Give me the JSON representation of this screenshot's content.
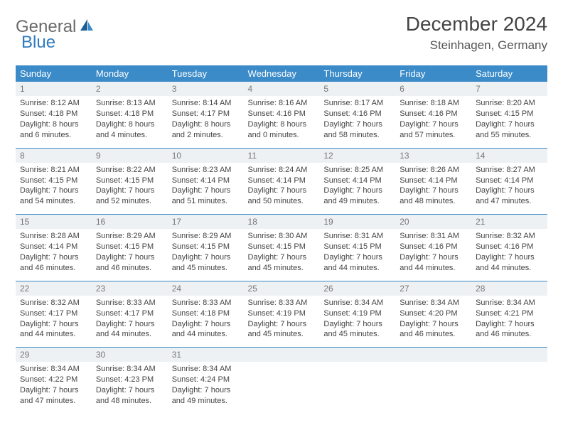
{
  "logo": {
    "word1": "General",
    "word2": "Blue"
  },
  "title": "December 2024",
  "location": "Steinhagen, Germany",
  "header_bg": "#3b8bc8",
  "daynum_bg": "#eef1f3",
  "week_border": "#3b8bc8",
  "day_headers": [
    "Sunday",
    "Monday",
    "Tuesday",
    "Wednesday",
    "Thursday",
    "Friday",
    "Saturday"
  ],
  "weeks": [
    [
      {
        "n": "1",
        "sr": "8:12 AM",
        "ss": "4:18 PM",
        "dl": "8 hours and 6 minutes."
      },
      {
        "n": "2",
        "sr": "8:13 AM",
        "ss": "4:18 PM",
        "dl": "8 hours and 4 minutes."
      },
      {
        "n": "3",
        "sr": "8:14 AM",
        "ss": "4:17 PM",
        "dl": "8 hours and 2 minutes."
      },
      {
        "n": "4",
        "sr": "8:16 AM",
        "ss": "4:16 PM",
        "dl": "8 hours and 0 minutes."
      },
      {
        "n": "5",
        "sr": "8:17 AM",
        "ss": "4:16 PM",
        "dl": "7 hours and 58 minutes."
      },
      {
        "n": "6",
        "sr": "8:18 AM",
        "ss": "4:16 PM",
        "dl": "7 hours and 57 minutes."
      },
      {
        "n": "7",
        "sr": "8:20 AM",
        "ss": "4:15 PM",
        "dl": "7 hours and 55 minutes."
      }
    ],
    [
      {
        "n": "8",
        "sr": "8:21 AM",
        "ss": "4:15 PM",
        "dl": "7 hours and 54 minutes."
      },
      {
        "n": "9",
        "sr": "8:22 AM",
        "ss": "4:15 PM",
        "dl": "7 hours and 52 minutes."
      },
      {
        "n": "10",
        "sr": "8:23 AM",
        "ss": "4:14 PM",
        "dl": "7 hours and 51 minutes."
      },
      {
        "n": "11",
        "sr": "8:24 AM",
        "ss": "4:14 PM",
        "dl": "7 hours and 50 minutes."
      },
      {
        "n": "12",
        "sr": "8:25 AM",
        "ss": "4:14 PM",
        "dl": "7 hours and 49 minutes."
      },
      {
        "n": "13",
        "sr": "8:26 AM",
        "ss": "4:14 PM",
        "dl": "7 hours and 48 minutes."
      },
      {
        "n": "14",
        "sr": "8:27 AM",
        "ss": "4:14 PM",
        "dl": "7 hours and 47 minutes."
      }
    ],
    [
      {
        "n": "15",
        "sr": "8:28 AM",
        "ss": "4:14 PM",
        "dl": "7 hours and 46 minutes."
      },
      {
        "n": "16",
        "sr": "8:29 AM",
        "ss": "4:15 PM",
        "dl": "7 hours and 46 minutes."
      },
      {
        "n": "17",
        "sr": "8:29 AM",
        "ss": "4:15 PM",
        "dl": "7 hours and 45 minutes."
      },
      {
        "n": "18",
        "sr": "8:30 AM",
        "ss": "4:15 PM",
        "dl": "7 hours and 45 minutes."
      },
      {
        "n": "19",
        "sr": "8:31 AM",
        "ss": "4:15 PM",
        "dl": "7 hours and 44 minutes."
      },
      {
        "n": "20",
        "sr": "8:31 AM",
        "ss": "4:16 PM",
        "dl": "7 hours and 44 minutes."
      },
      {
        "n": "21",
        "sr": "8:32 AM",
        "ss": "4:16 PM",
        "dl": "7 hours and 44 minutes."
      }
    ],
    [
      {
        "n": "22",
        "sr": "8:32 AM",
        "ss": "4:17 PM",
        "dl": "7 hours and 44 minutes."
      },
      {
        "n": "23",
        "sr": "8:33 AM",
        "ss": "4:17 PM",
        "dl": "7 hours and 44 minutes."
      },
      {
        "n": "24",
        "sr": "8:33 AM",
        "ss": "4:18 PM",
        "dl": "7 hours and 44 minutes."
      },
      {
        "n": "25",
        "sr": "8:33 AM",
        "ss": "4:19 PM",
        "dl": "7 hours and 45 minutes."
      },
      {
        "n": "26",
        "sr": "8:34 AM",
        "ss": "4:19 PM",
        "dl": "7 hours and 45 minutes."
      },
      {
        "n": "27",
        "sr": "8:34 AM",
        "ss": "4:20 PM",
        "dl": "7 hours and 46 minutes."
      },
      {
        "n": "28",
        "sr": "8:34 AM",
        "ss": "4:21 PM",
        "dl": "7 hours and 46 minutes."
      }
    ],
    [
      {
        "n": "29",
        "sr": "8:34 AM",
        "ss": "4:22 PM",
        "dl": "7 hours and 47 minutes."
      },
      {
        "n": "30",
        "sr": "8:34 AM",
        "ss": "4:23 PM",
        "dl": "7 hours and 48 minutes."
      },
      {
        "n": "31",
        "sr": "8:34 AM",
        "ss": "4:24 PM",
        "dl": "7 hours and 49 minutes."
      },
      null,
      null,
      null,
      null
    ]
  ],
  "labels": {
    "sunrise": "Sunrise: ",
    "sunset": "Sunset: ",
    "daylight": "Daylight: "
  }
}
